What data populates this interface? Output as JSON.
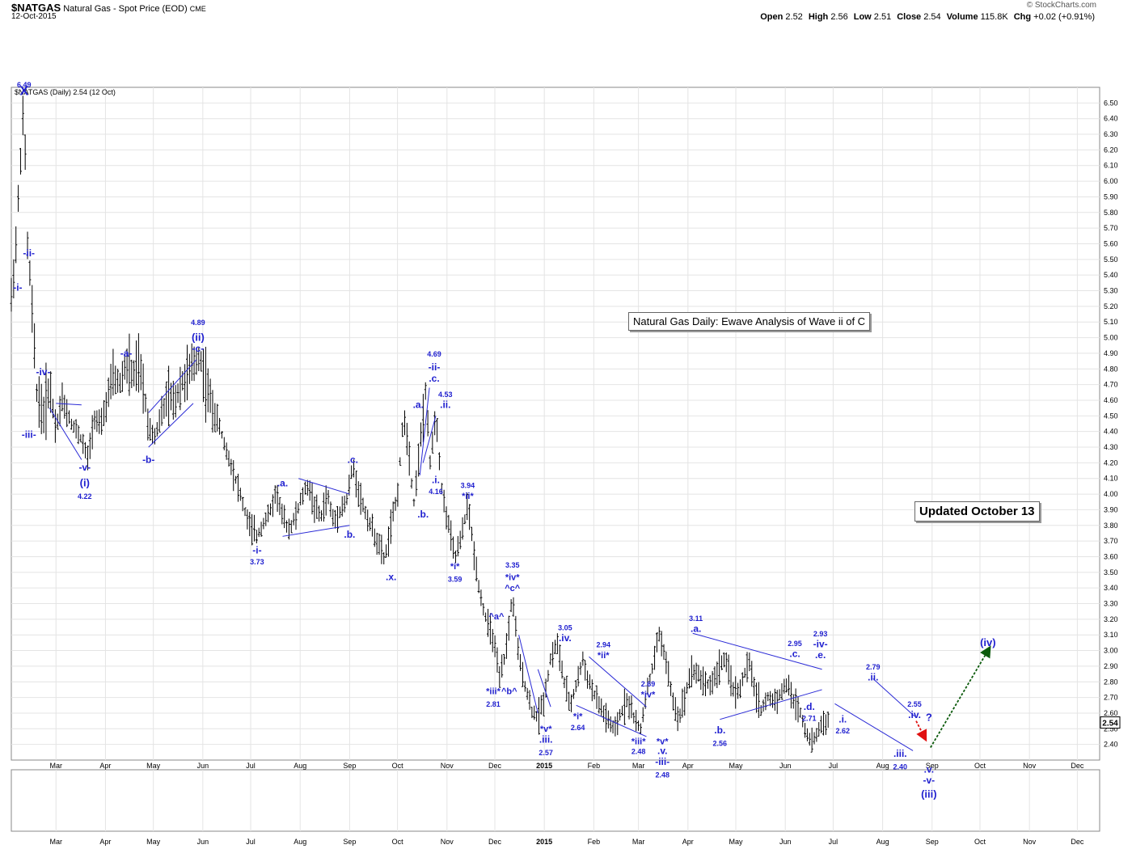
{
  "header": {
    "symbol": "$NATGAS",
    "name": "Natural Gas - Spot Price (EOD)",
    "exchange": "CME",
    "date": "12-Oct-2015",
    "brand": "© StockCharts.com",
    "quote": [
      {
        "label": "Open",
        "value": "2.52"
      },
      {
        "label": "High",
        "value": "2.56"
      },
      {
        "label": "Low",
        "value": "2.51"
      },
      {
        "label": "Close",
        "value": "2.54"
      },
      {
        "label": "Volume",
        "value": "115.8K"
      },
      {
        "label": "Chg",
        "value": "+0.02 (+0.91%)"
      }
    ]
  },
  "chart_data": {
    "type": "ohlc-bar",
    "legend": "$NATGAS (Daily) 2.54 (12 Oct)",
    "last_price_label": "2.54",
    "ylim": [
      2.3,
      6.6
    ],
    "y_ticks": [
      "2.40",
      "2.50",
      "2.60",
      "2.70",
      "2.80",
      "2.90",
      "3.00",
      "3.10",
      "3.20",
      "3.30",
      "3.40",
      "3.50",
      "3.60",
      "3.70",
      "3.80",
      "3.90",
      "4.00",
      "4.10",
      "4.20",
      "4.30",
      "4.40",
      "4.50",
      "4.60",
      "4.70",
      "4.80",
      "4.90",
      "5.00",
      "5.10",
      "5.20",
      "5.30",
      "5.40",
      "5.50",
      "5.60",
      "5.70",
      "5.80",
      "5.90",
      "6.00",
      "6.10",
      "6.20",
      "6.30",
      "6.40",
      "6.50"
    ],
    "x_ticks": [
      {
        "label": "Mar",
        "day": 28,
        "bold": false
      },
      {
        "label": "Apr",
        "day": 59,
        "bold": false
      },
      {
        "label": "May",
        "day": 89,
        "bold": false
      },
      {
        "label": "Jun",
        "day": 120,
        "bold": false
      },
      {
        "label": "Jul",
        "day": 150,
        "bold": false
      },
      {
        "label": "Aug",
        "day": 181,
        "bold": false
      },
      {
        "label": "Sep",
        "day": 212,
        "bold": false
      },
      {
        "label": "Oct",
        "day": 242,
        "bold": false
      },
      {
        "label": "Nov",
        "day": 273,
        "bold": false
      },
      {
        "label": "Dec",
        "day": 303,
        "bold": false
      },
      {
        "label": "2015",
        "day": 334,
        "bold": true
      },
      {
        "label": "Feb",
        "day": 365,
        "bold": false
      },
      {
        "label": "Mar",
        "day": 393,
        "bold": false
      },
      {
        "label": "Apr",
        "day": 424,
        "bold": false
      },
      {
        "label": "May",
        "day": 454,
        "bold": false
      },
      {
        "label": "Jun",
        "day": 485,
        "bold": false
      },
      {
        "label": "Jul",
        "day": 515,
        "bold": false
      },
      {
        "label": "Aug",
        "day": 546,
        "bold": false
      },
      {
        "label": "Sep",
        "day": 577,
        "bold": false
      },
      {
        "label": "Oct",
        "day": 607,
        "bold": false
      },
      {
        "label": "Nov",
        "day": 638,
        "bold": false
      },
      {
        "label": "Dec",
        "day": 668,
        "bold": false
      }
    ],
    "price_path": [
      [
        0,
        5.25
      ],
      [
        3,
        5.6
      ],
      [
        6,
        6.2
      ],
      [
        8,
        6.49
      ],
      [
        10,
        5.6
      ],
      [
        12,
        5.35
      ],
      [
        14,
        5.0
      ],
      [
        16,
        4.65
      ],
      [
        20,
        4.5
      ],
      [
        24,
        4.7
      ],
      [
        28,
        4.42
      ],
      [
        32,
        4.6
      ],
      [
        38,
        4.45
      ],
      [
        44,
        4.35
      ],
      [
        48,
        4.22
      ],
      [
        52,
        4.5
      ],
      [
        56,
        4.42
      ],
      [
        60,
        4.6
      ],
      [
        64,
        4.75
      ],
      [
        68,
        4.7
      ],
      [
        72,
        4.84
      ],
      [
        76,
        4.75
      ],
      [
        80,
        4.82
      ],
      [
        84,
        4.6
      ],
      [
        86,
        4.42
      ],
      [
        90,
        4.38
      ],
      [
        94,
        4.5
      ],
      [
        98,
        4.62
      ],
      [
        102,
        4.58
      ],
      [
        106,
        4.7
      ],
      [
        110,
        4.75
      ],
      [
        114,
        4.82
      ],
      [
        118,
        4.89
      ],
      [
        122,
        4.7
      ],
      [
        126,
        4.55
      ],
      [
        130,
        4.45
      ],
      [
        134,
        4.3
      ],
      [
        138,
        4.18
      ],
      [
        142,
        4.05
      ],
      [
        146,
        3.9
      ],
      [
        150,
        3.78
      ],
      [
        154,
        3.73
      ],
      [
        158,
        3.82
      ],
      [
        162,
        3.88
      ],
      [
        166,
        4.02
      ],
      [
        170,
        3.85
      ],
      [
        174,
        3.78
      ],
      [
        178,
        3.85
      ],
      [
        182,
        3.98
      ],
      [
        186,
        4.06
      ],
      [
        190,
        3.92
      ],
      [
        194,
        3.85
      ],
      [
        198,
        4.0
      ],
      [
        202,
        3.82
      ],
      [
        206,
        3.9
      ],
      [
        210,
        3.95
      ],
      [
        214,
        4.18
      ],
      [
        218,
        4.0
      ],
      [
        222,
        3.88
      ],
      [
        226,
        3.78
      ],
      [
        230,
        3.68
      ],
      [
        234,
        3.58
      ],
      [
        238,
        3.8
      ],
      [
        242,
        4.0
      ],
      [
        246,
        4.52
      ],
      [
        250,
        4.2
      ],
      [
        252,
        3.92
      ],
      [
        256,
        4.3
      ],
      [
        260,
        4.69
      ],
      [
        262,
        4.16
      ],
      [
        266,
        4.53
      ],
      [
        270,
        4.0
      ],
      [
        274,
        3.8
      ],
      [
        278,
        3.59
      ],
      [
        282,
        3.72
      ],
      [
        286,
        3.94
      ],
      [
        290,
        3.62
      ],
      [
        294,
        3.35
      ],
      [
        298,
        3.18
      ],
      [
        302,
        3.08
      ],
      [
        306,
        2.81
      ],
      [
        310,
        3.0
      ],
      [
        314,
        3.35
      ],
      [
        318,
        2.95
      ],
      [
        322,
        2.78
      ],
      [
        326,
        2.62
      ],
      [
        330,
        2.57
      ],
      [
        334,
        2.7
      ],
      [
        338,
        2.95
      ],
      [
        342,
        3.05
      ],
      [
        346,
        2.82
      ],
      [
        350,
        2.64
      ],
      [
        354,
        2.78
      ],
      [
        358,
        2.94
      ],
      [
        362,
        2.8
      ],
      [
        366,
        2.7
      ],
      [
        370,
        2.62
      ],
      [
        374,
        2.55
      ],
      [
        378,
        2.48
      ],
      [
        382,
        2.6
      ],
      [
        386,
        2.69
      ],
      [
        390,
        2.58
      ],
      [
        394,
        2.48
      ],
      [
        398,
        2.72
      ],
      [
        402,
        2.9
      ],
      [
        406,
        3.11
      ],
      [
        410,
        2.95
      ],
      [
        414,
        2.7
      ],
      [
        418,
        2.56
      ],
      [
        422,
        2.7
      ],
      [
        426,
        2.88
      ],
      [
        430,
        2.85
      ],
      [
        434,
        2.8
      ],
      [
        438,
        2.78
      ],
      [
        442,
        2.85
      ],
      [
        446,
        2.95
      ],
      [
        450,
        2.85
      ],
      [
        454,
        2.71
      ],
      [
        458,
        2.8
      ],
      [
        462,
        2.93
      ],
      [
        466,
        2.75
      ],
      [
        470,
        2.62
      ],
      [
        474,
        2.7
      ],
      [
        478,
        2.68
      ],
      [
        482,
        2.72
      ],
      [
        486,
        2.79
      ],
      [
        490,
        2.68
      ],
      [
        494,
        2.62
      ],
      [
        498,
        2.48
      ],
      [
        502,
        2.4
      ],
      [
        506,
        2.5
      ],
      [
        510,
        2.55
      ],
      [
        512,
        2.54
      ]
    ],
    "wave_labels": [
      {
        "text": "6.49",
        "day": 8,
        "price": 6.6,
        "size": 9
      },
      {
        "text": "X",
        "day": 8,
        "price": 6.55,
        "size": 16
      },
      {
        "text": "-i-",
        "day": 4,
        "price": 5.3,
        "size": 12
      },
      {
        "text": "-ii-",
        "day": 11,
        "price": 5.52,
        "size": 12
      },
      {
        "text": "-iv-",
        "day": 20,
        "price": 4.76,
        "size": 12
      },
      {
        "text": "-iii-",
        "day": 11,
        "price": 4.36,
        "size": 12
      },
      {
        "text": "-v-",
        "day": 46,
        "price": 4.15,
        "size": 12
      },
      {
        "text": "(i)",
        "day": 46,
        "price": 4.05,
        "size": 13
      },
      {
        "text": "4.22",
        "day": 46,
        "price": 3.97,
        "size": 9
      },
      {
        "text": "-a-",
        "day": 72,
        "price": 4.88,
        "size": 12
      },
      {
        "text": "-b-",
        "day": 86,
        "price": 4.2,
        "size": 12
      },
      {
        "text": "4.89",
        "day": 117,
        "price": 5.08,
        "size": 9
      },
      {
        "text": "(ii)",
        "day": 117,
        "price": 4.98,
        "size": 13
      },
      {
        "text": "-c-",
        "day": 117,
        "price": 4.91,
        "size": 12
      },
      {
        "text": "-i-",
        "day": 154,
        "price": 3.62,
        "size": 12
      },
      {
        "text": "3.73",
        "day": 154,
        "price": 3.55,
        "size": 9
      },
      {
        "text": ".a.",
        "day": 170,
        "price": 4.05,
        "size": 12
      },
      {
        "text": ".b.",
        "day": 212,
        "price": 3.72,
        "size": 12
      },
      {
        "text": ".c.",
        "day": 214,
        "price": 4.2,
        "size": 12
      },
      {
        "text": ".x.",
        "day": 238,
        "price": 3.45,
        "size": 12
      },
      {
        "text": ".a.",
        "day": 255,
        "price": 4.55,
        "size": 12
      },
      {
        "text": ".b.",
        "day": 258,
        "price": 3.85,
        "size": 12
      },
      {
        "text": "4.69",
        "day": 265,
        "price": 4.88,
        "size": 9
      },
      {
        "text": "-ii-",
        "day": 265,
        "price": 4.79,
        "size": 12
      },
      {
        "text": ".c.",
        "day": 265,
        "price": 4.72,
        "size": 12
      },
      {
        "text": "4.53",
        "day": 272,
        "price": 4.62,
        "size": 9
      },
      {
        "text": ".ii.",
        "day": 272,
        "price": 4.55,
        "size": 12
      },
      {
        "text": ".i.",
        "day": 266,
        "price": 4.07,
        "size": 12
      },
      {
        "text": "4.16",
        "day": 266,
        "price": 4.0,
        "size": 9
      },
      {
        "text": "3.94",
        "day": 286,
        "price": 4.04,
        "size": 9
      },
      {
        "text": "*ii*",
        "day": 286,
        "price": 3.97,
        "size": 11
      },
      {
        "text": "*i*",
        "day": 278,
        "price": 3.52,
        "size": 11
      },
      {
        "text": "3.59",
        "day": 278,
        "price": 3.44,
        "size": 9
      },
      {
        "text": "3.35",
        "day": 314,
        "price": 3.53,
        "size": 9
      },
      {
        "text": "*iv*",
        "day": 314,
        "price": 3.45,
        "size": 11
      },
      {
        "text": "^c^",
        "day": 314,
        "price": 3.38,
        "size": 11
      },
      {
        "text": "^a^",
        "day": 304,
        "price": 3.2,
        "size": 11
      },
      {
        "text": "*iii*",
        "day": 302,
        "price": 2.72,
        "size": 11
      },
      {
        "text": "^b^",
        "day": 312,
        "price": 2.72,
        "size": 11
      },
      {
        "text": "2.81",
        "day": 302,
        "price": 2.64,
        "size": 9
      },
      {
        "text": "3.05",
        "day": 347,
        "price": 3.13,
        "size": 9
      },
      {
        "text": ".iv.",
        "day": 347,
        "price": 3.06,
        "size": 12
      },
      {
        "text": "*v*",
        "day": 335,
        "price": 2.48,
        "size": 11
      },
      {
        "text": ".iii.",
        "day": 335,
        "price": 2.41,
        "size": 12
      },
      {
        "text": "2.57",
        "day": 335,
        "price": 2.33,
        "size": 9
      },
      {
        "text": "*i*",
        "day": 355,
        "price": 2.56,
        "size": 11
      },
      {
        "text": "2.64",
        "day": 355,
        "price": 2.49,
        "size": 9
      },
      {
        "text": "2.94",
        "day": 371,
        "price": 3.02,
        "size": 9
      },
      {
        "text": "*ii*",
        "day": 371,
        "price": 2.95,
        "size": 11
      },
      {
        "text": "2.69",
        "day": 399,
        "price": 2.77,
        "size": 9
      },
      {
        "text": "*iv*",
        "day": 399,
        "price": 2.7,
        "size": 11
      },
      {
        "text": "*iii*",
        "day": 393,
        "price": 2.4,
        "size": 11
      },
      {
        "text": "2.48",
        "day": 393,
        "price": 2.34,
        "size": 9
      },
      {
        "text": "*v*",
        "day": 408,
        "price": 2.4,
        "size": 11
      },
      {
        "text": ".v.",
        "day": 408,
        "price": 2.34,
        "size": 12
      },
      {
        "text": "-iii-",
        "day": 408,
        "price": 2.27,
        "size": 12
      },
      {
        "text": "2.48",
        "day": 408,
        "price": 2.19,
        "size": 9
      },
      {
        "text": "3.11",
        "day": 429,
        "price": 3.19,
        "size": 9
      },
      {
        "text": ".a.",
        "day": 429,
        "price": 3.12,
        "size": 12
      },
      {
        "text": ".b.",
        "day": 444,
        "price": 2.47,
        "size": 12
      },
      {
        "text": "2.56",
        "day": 444,
        "price": 2.39,
        "size": 9
      },
      {
        "text": "2.95",
        "day": 491,
        "price": 3.03,
        "size": 9
      },
      {
        "text": ".c.",
        "day": 491,
        "price": 2.96,
        "size": 12
      },
      {
        "text": ".d.",
        "day": 500,
        "price": 2.62,
        "size": 12
      },
      {
        "text": "2.71",
        "day": 500,
        "price": 2.55,
        "size": 9
      },
      {
        "text": "2.93",
        "day": 507,
        "price": 3.09,
        "size": 9
      },
      {
        "text": "-iv-",
        "day": 507,
        "price": 3.02,
        "size": 12
      },
      {
        "text": ".e.",
        "day": 507,
        "price": 2.95,
        "size": 12
      },
      {
        "text": ".i.",
        "day": 521,
        "price": 2.54,
        "size": 12
      },
      {
        "text": "2.62",
        "day": 521,
        "price": 2.47,
        "size": 9
      },
      {
        "text": "2.79",
        "day": 540,
        "price": 2.88,
        "size": 9
      },
      {
        "text": ".ii.",
        "day": 540,
        "price": 2.81,
        "size": 12
      },
      {
        "text": "2.55",
        "day": 566,
        "price": 2.64,
        "size": 9
      },
      {
        "text": ".iv.",
        "day": 566,
        "price": 2.57,
        "size": 12
      },
      {
        "text": "?",
        "day": 575,
        "price": 2.55,
        "size": 13
      },
      {
        "text": ".iii.",
        "day": 557,
        "price": 2.32,
        "size": 12
      },
      {
        "text": "2.40",
        "day": 557,
        "price": 2.24,
        "size": 9
      },
      {
        "text": ".v.",
        "day": 575,
        "price": 2.22,
        "size": 12
      },
      {
        "text": "-v-",
        "day": 575,
        "price": 2.15,
        "size": 12
      },
      {
        "text": "(iii)",
        "day": 575,
        "price": 2.06,
        "size": 13
      },
      {
        "text": "(iv)",
        "day": 612,
        "price": 3.03,
        "size": 13
      }
    ],
    "trend_lines": [
      [
        24,
        4.55,
        44,
        4.22
      ],
      [
        28,
        4.58,
        44,
        4.57
      ],
      [
        86,
        4.3,
        114,
        4.58
      ],
      [
        86,
        4.52,
        116,
        4.86
      ],
      [
        170,
        3.73,
        212,
        3.8
      ],
      [
        180,
        4.1,
        212,
        4.0
      ],
      [
        256,
        4.12,
        262,
        4.68
      ],
      [
        258,
        4.2,
        266,
        4.5
      ],
      [
        318,
        3.1,
        330,
        2.6
      ],
      [
        330,
        2.88,
        338,
        2.64
      ],
      [
        354,
        2.65,
        398,
        2.45
      ],
      [
        362,
        2.96,
        398,
        2.64
      ],
      [
        427,
        3.11,
        508,
        2.88
      ],
      [
        444,
        2.56,
        508,
        2.75
      ],
      [
        516,
        2.66,
        565,
        2.36
      ],
      [
        540,
        2.82,
        566,
        2.58
      ]
    ],
    "annotations": [
      {
        "text": "Natural Gas Daily: Ewave Analysis of Wave ii of C",
        "x": 777,
        "y": 386,
        "size": 13,
        "bold": false
      },
      {
        "text": "Updated October 13",
        "x": 1131,
        "y": 620,
        "size": 15,
        "bold": true
      }
    ]
  }
}
